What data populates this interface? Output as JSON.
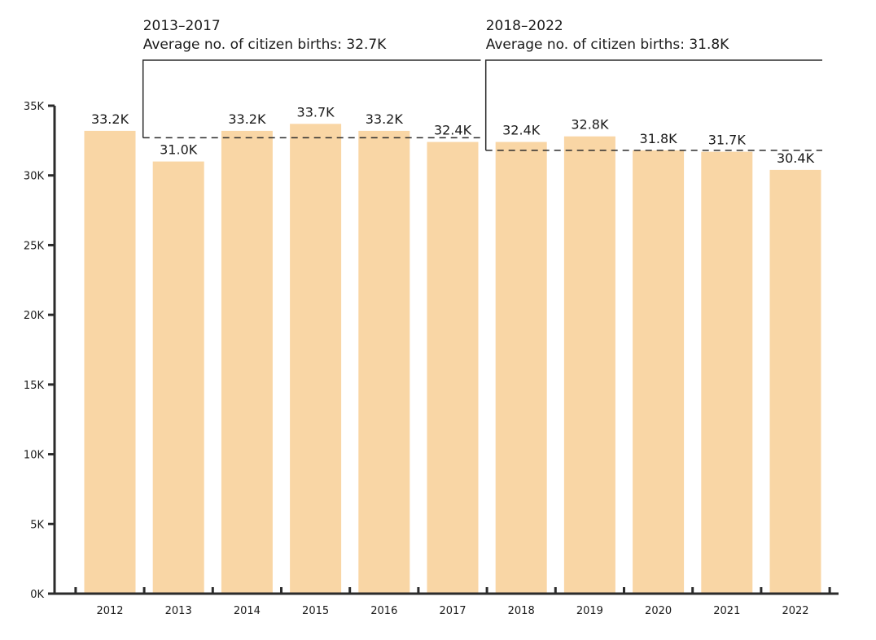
{
  "chart_data": {
    "type": "bar",
    "title": "",
    "xlabel": "",
    "ylabel": "",
    "categories": [
      "2012",
      "2013",
      "2014",
      "2015",
      "2016",
      "2017",
      "2018",
      "2019",
      "2020",
      "2021",
      "2022"
    ],
    "values": [
      33.2,
      31.0,
      33.2,
      33.7,
      33.2,
      32.4,
      32.4,
      32.8,
      31.8,
      31.7,
      30.4
    ],
    "value_labels": [
      "33.2K",
      "31.0K",
      "33.2K",
      "33.7K",
      "33.2K",
      "32.4K",
      "32.4K",
      "32.8K",
      "31.8K",
      "31.7K",
      "30.4K"
    ],
    "ylim": [
      0,
      35
    ],
    "yticks": [
      0,
      5,
      10,
      15,
      20,
      25,
      30,
      35
    ],
    "ytick_labels": [
      "0K",
      "5K",
      "10K",
      "15K",
      "20K",
      "25K",
      "30K",
      "35K"
    ],
    "grid": false,
    "bar_color": "#f9d6a5",
    "annotations": [
      {
        "period": "2013–2017",
        "text": "Average no. of citizen births: 32.7K",
        "start_category": "2013",
        "end_category": "2017",
        "average": 32.7
      },
      {
        "period": "2018–2022",
        "text": "Average no. of citizen births: 31.8K",
        "start_category": "2018",
        "end_category": "2022",
        "average": 31.8
      }
    ]
  }
}
